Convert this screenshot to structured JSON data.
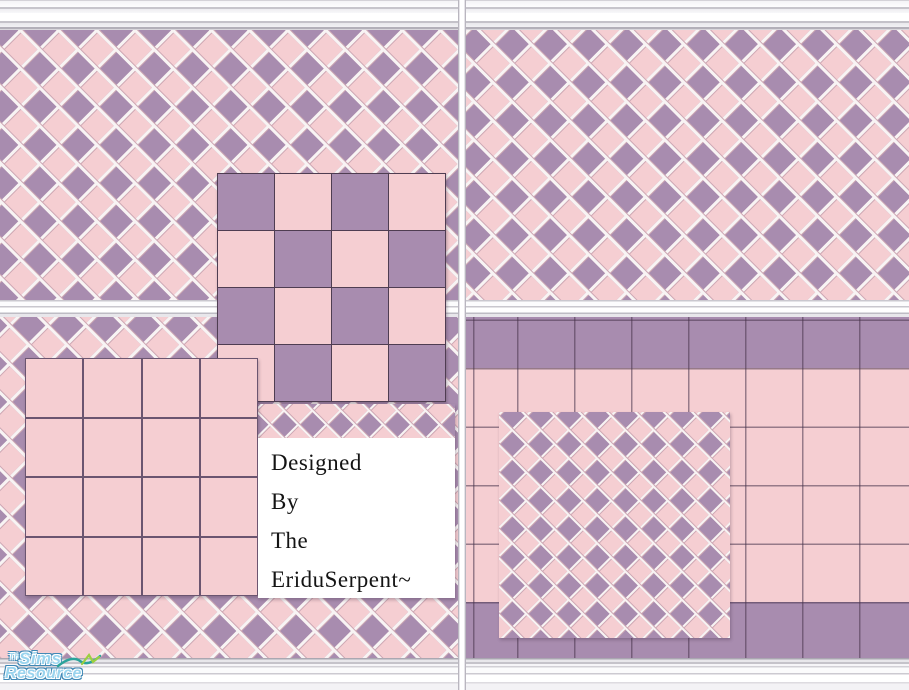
{
  "colors": {
    "pink": "#f5ced2",
    "purple": "#a88caf",
    "grout_white": "#f8f4f4",
    "grout_shadow": "#cda7b3",
    "label_bg": "#ffffff",
    "label_text": "#141414",
    "logo_fill": "#9ad4ee",
    "logo_shadow": "#3f88b5",
    "swoosh_teal": "#2ba39b",
    "swoosh_green": "#9ccf3f"
  },
  "label": {
    "lines": [
      "Designed",
      "By",
      "The",
      "EriduSerpent~"
    ]
  },
  "logo": {
    "the": "The",
    "sims": "Sims",
    "resource": "Resource"
  },
  "overlays": {
    "checkerboard": {
      "rows": [
        [
          "purple",
          "pink",
          "purple",
          "pink"
        ],
        [
          "pink",
          "purple",
          "pink",
          "purple"
        ],
        [
          "purple",
          "pink",
          "purple",
          "pink"
        ],
        [
          "pink",
          "purple",
          "pink",
          "purple"
        ]
      ]
    },
    "pink_grid": {
      "rows": [
        [
          "pink",
          "pink",
          "pink",
          "pink"
        ],
        [
          "pink",
          "pink",
          "pink",
          "pink"
        ],
        [
          "pink",
          "pink",
          "pink",
          "pink"
        ],
        [
          "pink",
          "pink",
          "pink",
          "pink"
        ]
      ]
    }
  },
  "swatches": [
    {
      "position": "top-left",
      "pattern": "diagonal-lattice-large"
    },
    {
      "position": "top-right",
      "pattern": "diagonal-lattice-large"
    },
    {
      "position": "bottom-left",
      "pattern": "diagonal-lattice-large"
    },
    {
      "position": "bottom-right",
      "pattern": "square-tiles-purple-border"
    },
    {
      "position": "center",
      "pattern": "checkerboard-4x4"
    },
    {
      "position": "center-left",
      "pattern": "pink-grid-4x4"
    },
    {
      "position": "center-right",
      "pattern": "diagonal-lattice-small"
    }
  ]
}
